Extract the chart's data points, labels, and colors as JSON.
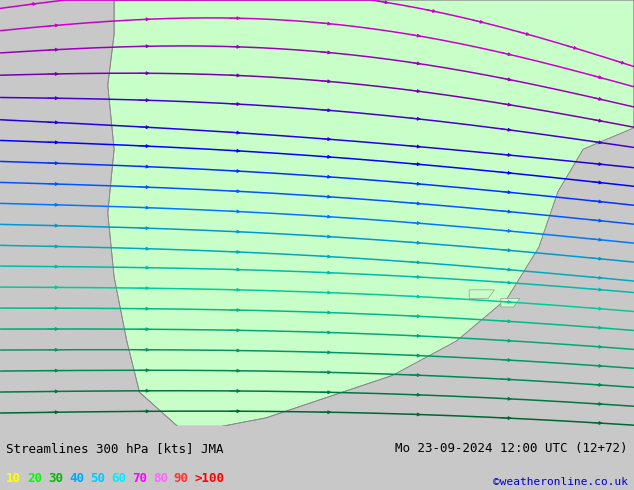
{
  "title_left": "Streamlines 300 hPa [kts] JMA",
  "title_right": "Mo 23-09-2024 12:00 UTC (12+72)",
  "watermark": "©weatheronline.co.uk",
  "legend_values": [
    "10",
    "20",
    "30",
    "40",
    "50",
    "60",
    "70",
    "80",
    "90",
    ">100"
  ],
  "legend_colors": [
    "#ffff00",
    "#00ff00",
    "#00bb00",
    "#00aaff",
    "#00ccff",
    "#00eeff",
    "#ff00ff",
    "#ff66ff",
    "#ff3333",
    "#ff0000"
  ],
  "bg_color": "#c8c8c8",
  "land_green": "#c8ffc8",
  "ocean_gray": "#c8c8c8",
  "coast_color": "#888888",
  "figsize": [
    6.34,
    4.9
  ],
  "dpi": 100,
  "bottom_bar_height": 0.13,
  "title_fontsize": 9,
  "legend_fontsize": 9,
  "watermark_color": "#0000cc",
  "streamline_colors": [
    "#cc00cc",
    "#cc00cc",
    "#9900bb",
    "#7700aa",
    "#4400cc",
    "#2200dd",
    "#0000ff",
    "#0033ff",
    "#0055ff",
    "#0077ff",
    "#0099cc",
    "#00aabb",
    "#00bbaa",
    "#00cc99",
    "#00bb88",
    "#00aa77",
    "#009966",
    "#008855",
    "#007744",
    "#006633"
  ],
  "n_lines": 20,
  "n_arrows_per_line": 7
}
